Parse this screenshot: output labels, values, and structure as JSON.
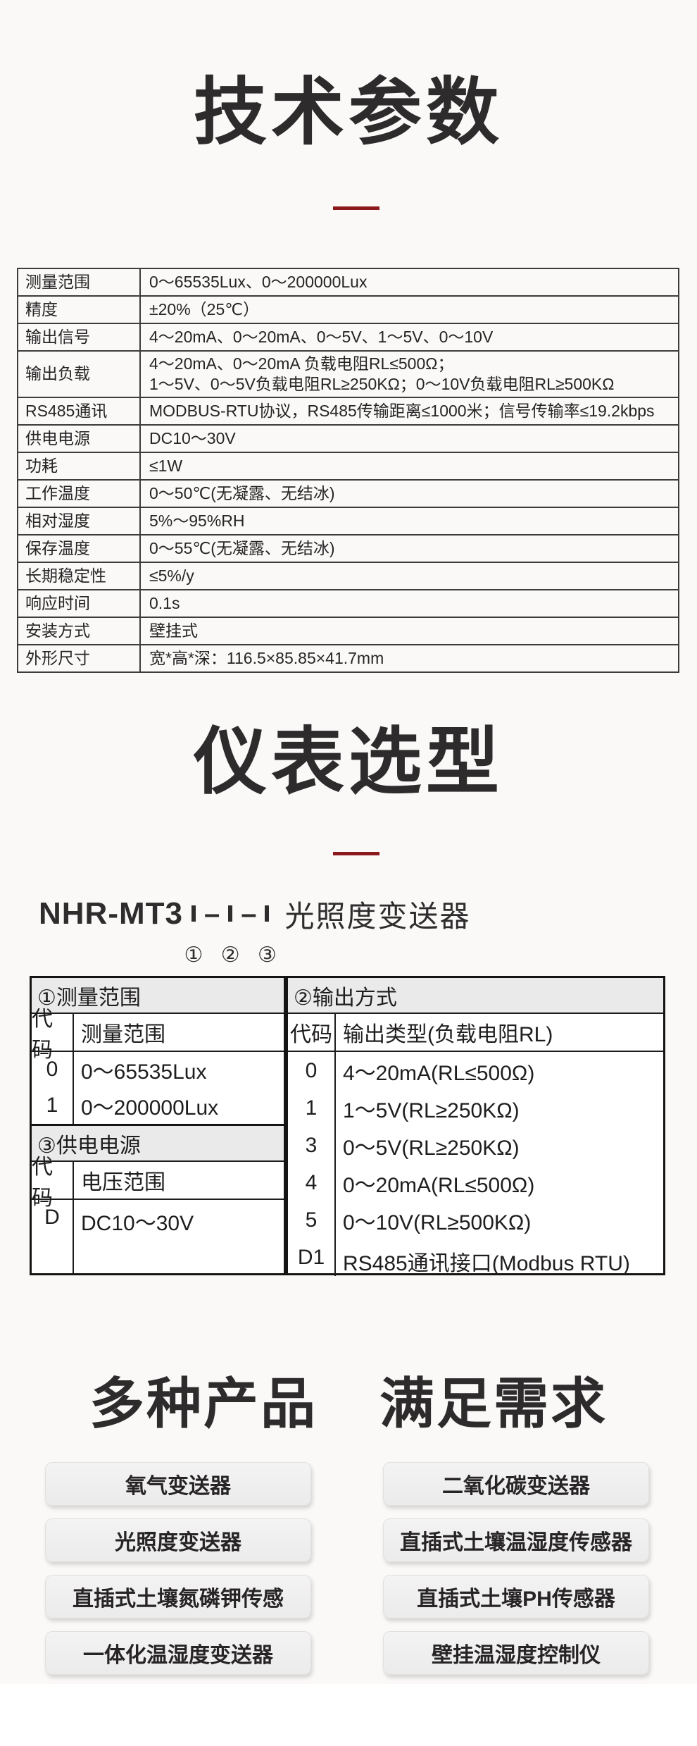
{
  "colors": {
    "page_background": "#fbf8f8",
    "accent_divider_red": "#8b181d",
    "heading_ink": "#2d2b2b",
    "table_border_dark": "#141414",
    "spec_table_border": "#3c3c3c",
    "section_header_gray": "#eaeaea",
    "button_background": "#f0efef"
  },
  "tech": {
    "title": "技术参数",
    "rows": [
      {
        "label": "测量范围",
        "value": "0～65535Lux、0～200000Lux"
      },
      {
        "label": "精度",
        "value": "±20%（25℃）"
      },
      {
        "label": "输出信号",
        "value": "4～20mA、0～20mA、0～5V、1～5V、0～10V"
      },
      {
        "label": "输出负载",
        "value": "4～20mA、0～20mA 负载电阻RL≤500Ω；",
        "value2": "1～5V、0～5V负载电阻RL≥250KΩ；0～10V负载电阻RL≥500KΩ"
      },
      {
        "label": "RS485通讯",
        "value": "MODBUS-RTU协议，RS485传输距离≤1000米；信号传输率≤19.2kbps"
      },
      {
        "label": "供电电源",
        "value": "DC10～30V"
      },
      {
        "label": "功耗",
        "value": "≤1W"
      },
      {
        "label": "工作温度",
        "value": "0～50℃(无凝露、无结冰)"
      },
      {
        "label": "相对湿度",
        "value": "5%～95%RH"
      },
      {
        "label": "保存温度",
        "value": "0～55℃(无凝露、无结冰)"
      },
      {
        "label": "长期稳定性",
        "value": "≤5%/y"
      },
      {
        "label": "响应时间",
        "value": "0.1s"
      },
      {
        "label": "安装方式",
        "value": "壁挂式"
      },
      {
        "label": "外形尺寸",
        "value": "宽*高*深：116.5×85.85×41.7mm"
      }
    ]
  },
  "selection": {
    "title": "仪表选型",
    "model_prefix": "NHR-MT3",
    "dash": "–",
    "model_suffix": "光照度变送器",
    "box_labels": [
      "①",
      "②",
      "③"
    ],
    "t1": {
      "header": "①测量范围",
      "col1": "代码",
      "col2": "测量范围",
      "rows": [
        [
          "0",
          "0～65535Lux"
        ],
        [
          "1",
          "0～200000Lux"
        ]
      ]
    },
    "t2": {
      "header": "②输出方式",
      "col1": "代码",
      "col2": "输出类型(负载电阻RL)",
      "rows": [
        [
          "0",
          "4～20mA(RL≤500Ω)"
        ],
        [
          "1",
          "1～5V(RL≥250KΩ)"
        ],
        [
          "3",
          "0～5V(RL≥250KΩ)"
        ],
        [
          "4",
          "0～20mA(RL≤500Ω)"
        ],
        [
          "5",
          "0～10V(RL≥500KΩ)"
        ],
        [
          "D1",
          "RS485通讯接口(Modbus RTU)"
        ]
      ]
    },
    "t3": {
      "header": "③供电电源",
      "col1": "代码",
      "col2": "电压范围",
      "rows": [
        [
          "D",
          "DC10～30V"
        ]
      ]
    }
  },
  "products": {
    "title_left": "多种产品",
    "title_right": "满足需求",
    "left": [
      "氧气变送器",
      "光照度变送器",
      "直插式土壤氮磷钾传感",
      "一体化温湿度变送器"
    ],
    "right": [
      "二氧化碳变送器",
      "直插式土壤温湿度传感器",
      "直插式土壤PH传感器",
      "壁挂温湿度控制仪"
    ]
  }
}
